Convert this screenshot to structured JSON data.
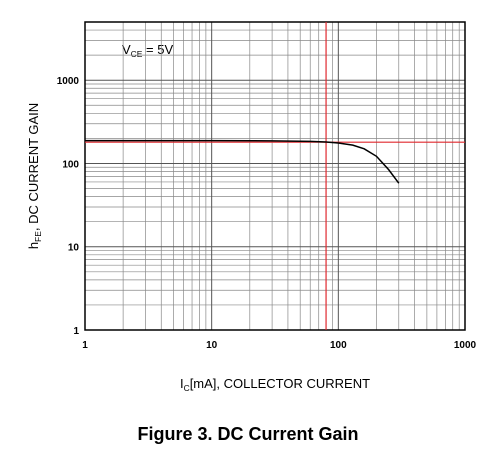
{
  "chart_data": {
    "type": "line",
    "title": "Figure 3. DC Current Gain",
    "annotation": {
      "parts": [
        "V",
        "CE",
        " = 5V"
      ]
    },
    "x_label": {
      "parts": [
        "I",
        "C",
        "[mA], COLLECTOR CURRENT"
      ]
    },
    "y_label": {
      "parts": [
        "h",
        "FE",
        ", DC CURRENT GAIN"
      ]
    },
    "log_x": true,
    "log_y": true,
    "grid": true,
    "minor_grid": true,
    "xlim": [
      1,
      1000
    ],
    "xticks": [
      1,
      10,
      100,
      1000
    ],
    "ylim": [
      1,
      5000
    ],
    "yticks": [
      1,
      10,
      100,
      1000
    ],
    "series": [
      {
        "color": "#000000",
        "x": [
          1,
          10,
          30,
          60,
          80,
          100,
          130,
          160,
          200,
          250,
          300
        ],
        "values": [
          188,
          188,
          187,
          184,
          181,
          176,
          166,
          150,
          122,
          84,
          58
        ]
      }
    ],
    "reference_lines": {
      "color": "#e0282e",
      "x": 80,
      "y": 180
    }
  }
}
